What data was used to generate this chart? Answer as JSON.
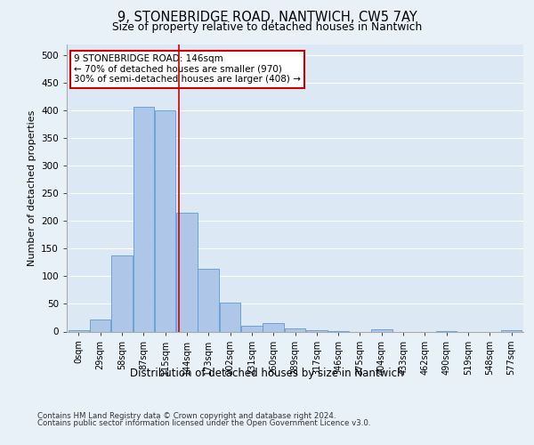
{
  "title_line1": "9, STONEBRIDGE ROAD, NANTWICH, CW5 7AY",
  "title_line2": "Size of property relative to detached houses in Nantwich",
  "xlabel": "Distribution of detached houses by size in Nantwich",
  "ylabel": "Number of detached properties",
  "footnote1": "Contains HM Land Registry data © Crown copyright and database right 2024.",
  "footnote2": "Contains public sector information licensed under the Open Government Licence v3.0.",
  "bin_labels": [
    "0sqm",
    "29sqm",
    "58sqm",
    "87sqm",
    "115sqm",
    "144sqm",
    "173sqm",
    "202sqm",
    "231sqm",
    "260sqm",
    "289sqm",
    "317sqm",
    "346sqm",
    "375sqm",
    "404sqm",
    "433sqm",
    "462sqm",
    "490sqm",
    "519sqm",
    "548sqm",
    "577sqm"
  ],
  "bar_values": [
    3,
    21,
    138,
    407,
    400,
    216,
    114,
    53,
    11,
    15,
    6,
    2,
    1,
    0,
    4,
    0,
    0,
    1,
    0,
    0,
    2
  ],
  "bar_color": "#aec6e8",
  "bar_edge_color": "#5b9bd5",
  "annotation_title": "9 STONEBRIDGE ROAD: 146sqm",
  "annotation_line2": "← 70% of detached houses are smaller (970)",
  "annotation_line3": "30% of semi-detached houses are larger (408) →",
  "ylim": [
    0,
    520
  ],
  "yticks": [
    0,
    50,
    100,
    150,
    200,
    250,
    300,
    350,
    400,
    450,
    500
  ],
  "background_color": "#e8f0f8",
  "axes_bg_color": "#dce9f5",
  "grid_color": "#ffffff",
  "annotation_box_color": "#ffffff",
  "annotation_box_edge": "#cc0000",
  "red_line_x": 4.62
}
